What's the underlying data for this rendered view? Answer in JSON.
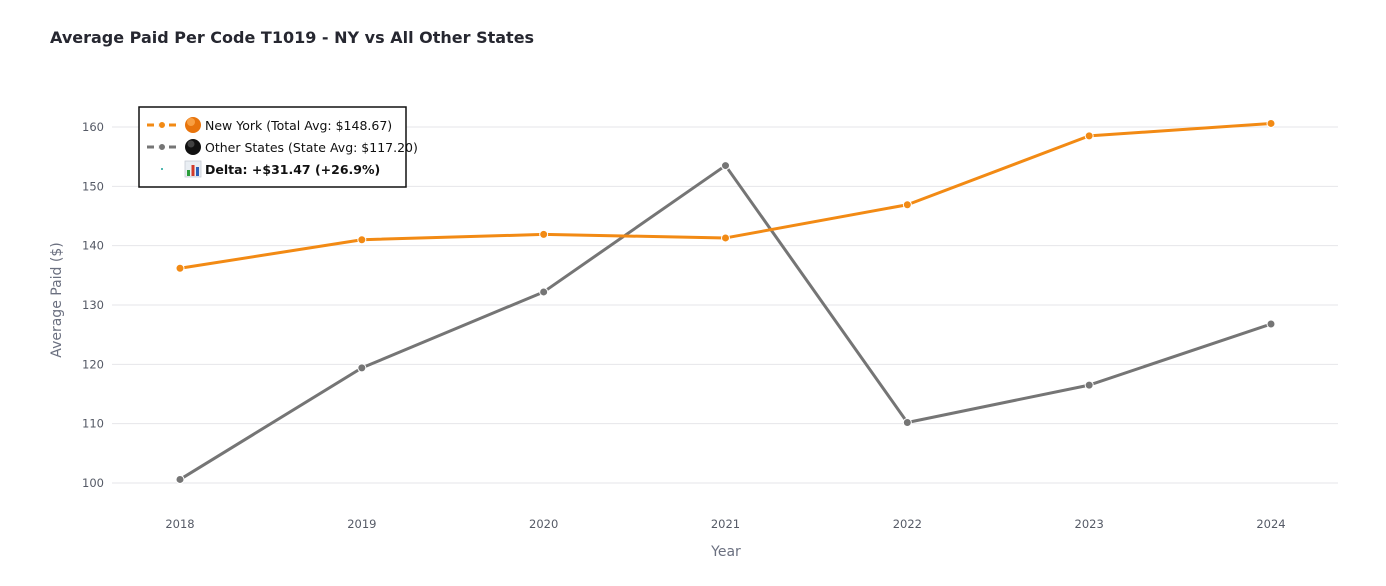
{
  "chart_data": {
    "type": "line",
    "title": "Average Paid Per Code T1019 - NY vs All Other States",
    "xlabel": "Year",
    "ylabel": "Average Paid ($)",
    "categories": [
      "2018",
      "2019",
      "2020",
      "2021",
      "2022",
      "2023",
      "2024"
    ],
    "yticks": [
      100,
      110,
      120,
      130,
      140,
      150,
      160
    ],
    "ylim": [
      98,
      163
    ],
    "grid": true,
    "legend_position": "top-left",
    "series": [
      {
        "name": "New York (Total Avg: $148.67)",
        "color": "#f28a14",
        "marker_icon": "orange-circle-icon",
        "values": [
          136.2,
          141.0,
          141.9,
          141.3,
          146.9,
          158.5,
          160.6
        ]
      },
      {
        "name": "Other States (State Avg: $117.20)",
        "color": "#757575",
        "marker_icon": "black-circle-icon",
        "values": [
          100.6,
          119.4,
          132.2,
          153.5,
          110.2,
          116.5,
          126.8
        ]
      }
    ],
    "annotation": {
      "label": "Delta: +$31.47 (+26.9%)",
      "icon": "bar-chart-icon",
      "color": "#1aa39a"
    }
  }
}
